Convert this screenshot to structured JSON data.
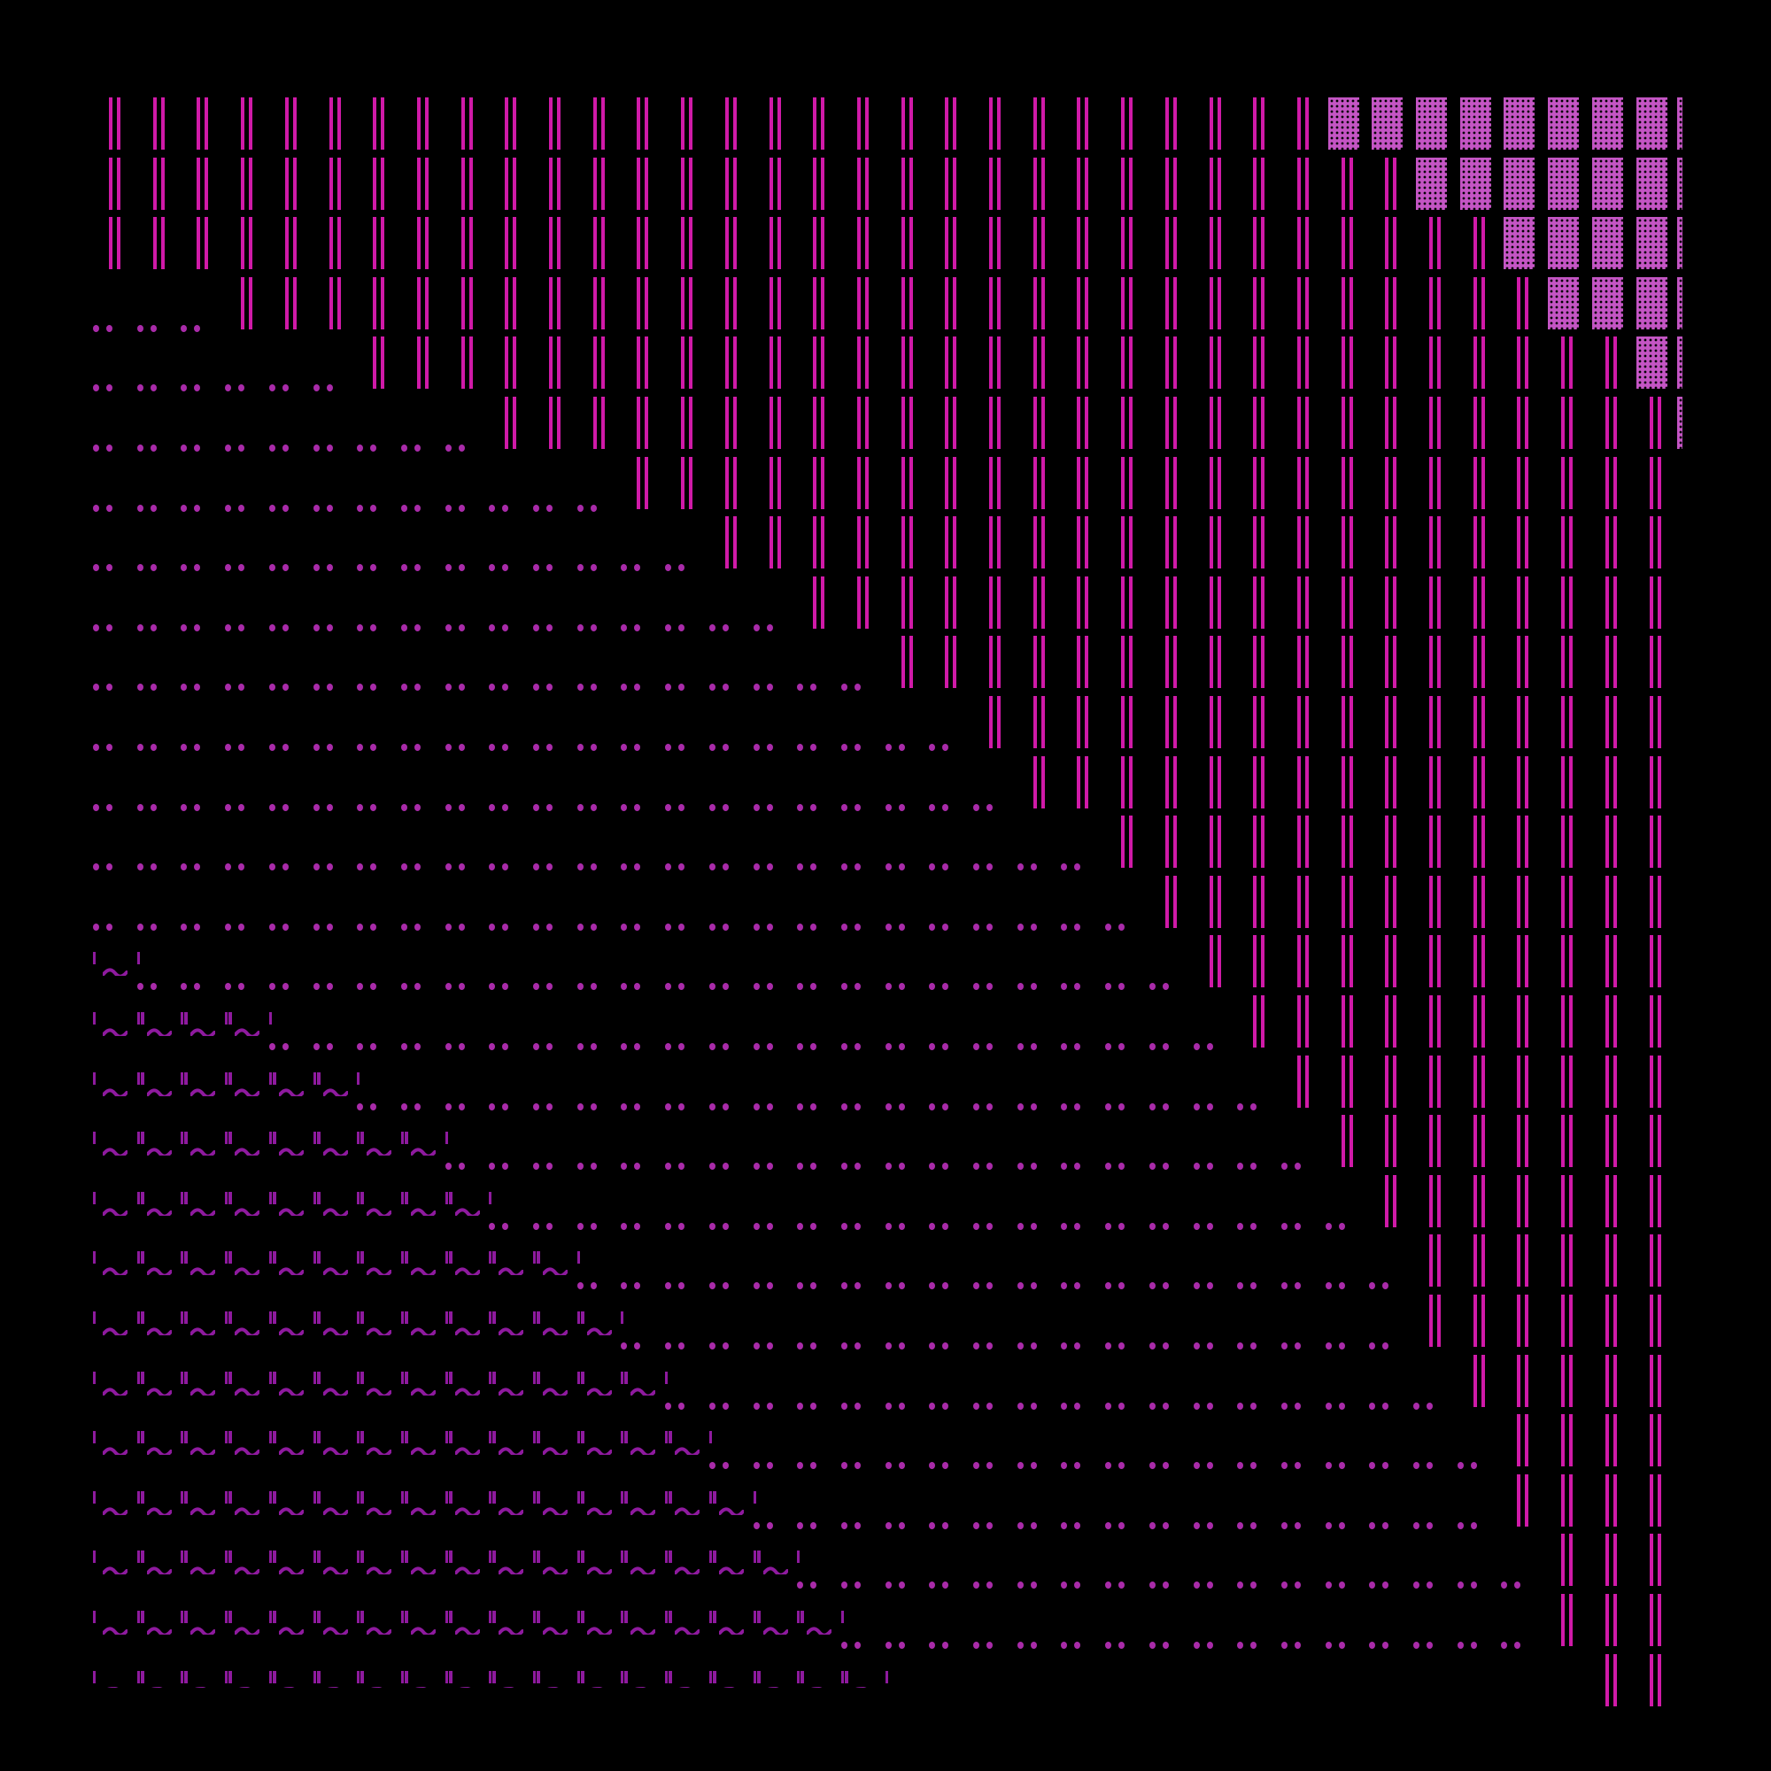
{
  "colors": {
    "background": "#000000",
    "bars": "#d01aa8",
    "checker": "#c455c4",
    "dots": "#a92ba9",
    "tilde": "#8e1a9e"
  },
  "grid": {
    "columns": 37,
    "rows": [
      [
        {
          "glyph": "bars",
          "from": 0,
          "to": 27
        },
        {
          "glyph": "checker",
          "from": 28,
          "to": 35
        },
        {
          "glyph": "checker-sliver",
          "from": 36,
          "to": 36
        }
      ],
      [
        {
          "glyph": "bars",
          "from": 0,
          "to": 29
        },
        {
          "glyph": "checker",
          "from": 30,
          "to": 35
        },
        {
          "glyph": "checker-sliver",
          "from": 36,
          "to": 36
        }
      ],
      [
        {
          "glyph": "bars",
          "from": 0,
          "to": 31
        },
        {
          "glyph": "checker",
          "from": 32,
          "to": 35
        },
        {
          "glyph": "checker-sliver",
          "from": 36,
          "to": 36
        }
      ],
      [
        {
          "glyph": "dots",
          "from": 0,
          "to": 2
        },
        {
          "glyph": "bars",
          "from": 3,
          "to": 32
        },
        {
          "glyph": "checker",
          "from": 33,
          "to": 35
        },
        {
          "glyph": "checker-sliver",
          "from": 36,
          "to": 36
        }
      ],
      [
        {
          "glyph": "dots",
          "from": 0,
          "to": 5
        },
        {
          "glyph": "bars",
          "from": 6,
          "to": 34
        },
        {
          "glyph": "checker",
          "from": 35,
          "to": 35
        },
        {
          "glyph": "checker-sliver",
          "from": 36,
          "to": 36
        }
      ],
      [
        {
          "glyph": "dots",
          "from": 0,
          "to": 8
        },
        {
          "glyph": "bars",
          "from": 9,
          "to": 35
        },
        {
          "glyph": "checker-sliver",
          "from": 36,
          "to": 36
        }
      ],
      [
        {
          "glyph": "dots",
          "from": 0,
          "to": 11
        },
        {
          "glyph": "bars",
          "from": 12,
          "to": 35
        }
      ],
      [
        {
          "glyph": "dots",
          "from": 0,
          "to": 13
        },
        {
          "glyph": "bars",
          "from": 14,
          "to": 35
        }
      ],
      [
        {
          "glyph": "dots",
          "from": 0,
          "to": 15
        },
        {
          "glyph": "bars",
          "from": 16,
          "to": 35
        }
      ],
      [
        {
          "glyph": "dots",
          "from": 0,
          "to": 17
        },
        {
          "glyph": "bars",
          "from": 18,
          "to": 35
        }
      ],
      [
        {
          "glyph": "dots",
          "from": 0,
          "to": 19
        },
        {
          "glyph": "bars",
          "from": 20,
          "to": 35
        }
      ],
      [
        {
          "glyph": "dots",
          "from": 0,
          "to": 20
        },
        {
          "glyph": "bars",
          "from": 21,
          "to": 35
        }
      ],
      [
        {
          "glyph": "dots",
          "from": 0,
          "to": 22
        },
        {
          "glyph": "bars",
          "from": 23,
          "to": 35
        }
      ],
      [
        {
          "glyph": "dots",
          "from": 0,
          "to": 23
        },
        {
          "glyph": "bars",
          "from": 24,
          "to": 35
        }
      ],
      [
        {
          "glyph": "tilde",
          "from": 0,
          "to": 0
        },
        {
          "glyph": "dots",
          "from": 1,
          "to": 24
        },
        {
          "glyph": "bars",
          "from": 25,
          "to": 35
        }
      ],
      [
        {
          "glyph": "tilde",
          "from": 0,
          "to": 3
        },
        {
          "glyph": "dots",
          "from": 4,
          "to": 25
        },
        {
          "glyph": "bars",
          "from": 26,
          "to": 35
        }
      ],
      [
        {
          "glyph": "tilde",
          "from": 0,
          "to": 5
        },
        {
          "glyph": "dots",
          "from": 6,
          "to": 26
        },
        {
          "glyph": "bars",
          "from": 27,
          "to": 35
        }
      ],
      [
        {
          "glyph": "tilde",
          "from": 0,
          "to": 7
        },
        {
          "glyph": "dots",
          "from": 8,
          "to": 27
        },
        {
          "glyph": "bars",
          "from": 28,
          "to": 35
        }
      ],
      [
        {
          "glyph": "tilde",
          "from": 0,
          "to": 8
        },
        {
          "glyph": "dots",
          "from": 9,
          "to": 28
        },
        {
          "glyph": "bars",
          "from": 29,
          "to": 35
        }
      ],
      [
        {
          "glyph": "tilde",
          "from": 0,
          "to": 10
        },
        {
          "glyph": "dots",
          "from": 11,
          "to": 29
        },
        {
          "glyph": "bars",
          "from": 30,
          "to": 35
        }
      ],
      [
        {
          "glyph": "tilde",
          "from": 0,
          "to": 11
        },
        {
          "glyph": "dots",
          "from": 12,
          "to": 29
        },
        {
          "glyph": "bars",
          "from": 30,
          "to": 35
        }
      ],
      [
        {
          "glyph": "tilde",
          "from": 0,
          "to": 12
        },
        {
          "glyph": "dots",
          "from": 13,
          "to": 30
        },
        {
          "glyph": "bars",
          "from": 31,
          "to": 35
        }
      ],
      [
        {
          "glyph": "tilde",
          "from": 0,
          "to": 13
        },
        {
          "glyph": "dots",
          "from": 14,
          "to": 31
        },
        {
          "glyph": "bars",
          "from": 32,
          "to": 35
        }
      ],
      [
        {
          "glyph": "tilde",
          "from": 0,
          "to": 14
        },
        {
          "glyph": "dots",
          "from": 15,
          "to": 31
        },
        {
          "glyph": "bars",
          "from": 32,
          "to": 35
        }
      ],
      [
        {
          "glyph": "tilde",
          "from": 0,
          "to": 15
        },
        {
          "glyph": "dots",
          "from": 16,
          "to": 32
        },
        {
          "glyph": "bars",
          "from": 33,
          "to": 35
        }
      ],
      [
        {
          "glyph": "tilde",
          "from": 0,
          "to": 16
        },
        {
          "glyph": "dots",
          "from": 17,
          "to": 32
        },
        {
          "glyph": "bars",
          "from": 33,
          "to": 35
        }
      ],
      [
        {
          "glyph": "tilde-flat",
          "from": 0,
          "to": 17
        },
        {
          "glyph": "bars",
          "from": 34,
          "to": 35
        }
      ]
    ]
  }
}
